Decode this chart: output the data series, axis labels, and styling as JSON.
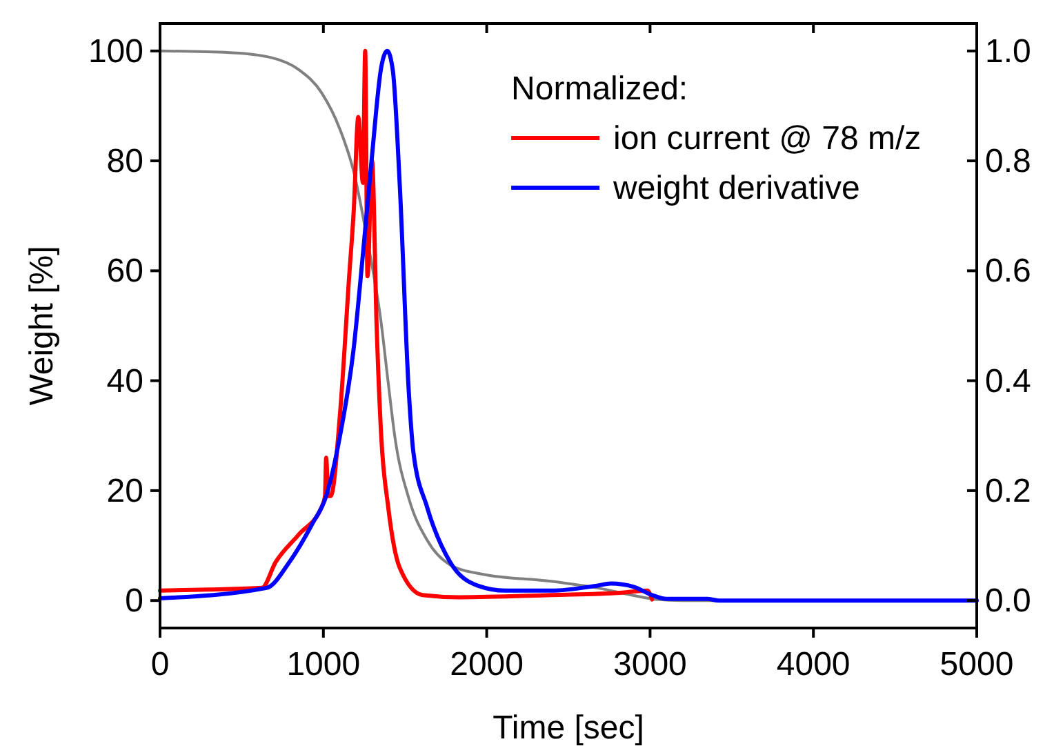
{
  "chart_data": {
    "type": "line",
    "xlabel": "Time [sec]",
    "ylabel": "Weight [%]",
    "legend_title": "Normalized:",
    "xlim": [
      0,
      5000
    ],
    "xticks": [
      0,
      1000,
      2000,
      3000,
      4000,
      5000
    ],
    "ylim": [
      -5,
      105
    ],
    "yticks": [
      0,
      20,
      40,
      60,
      80,
      100
    ],
    "y2lim": [
      -0.05,
      1.05
    ],
    "y2ticks": [
      {
        "value": 0,
        "label": "0.0"
      },
      {
        "value": 0.2,
        "label": "0.2"
      },
      {
        "value": 0.4,
        "label": "0.4"
      },
      {
        "value": 0.6,
        "label": "0.6"
      },
      {
        "value": 0.8,
        "label": "0.8"
      },
      {
        "value": 1,
        "label": "1.0"
      }
    ],
    "grid": false,
    "legend": "top right",
    "line_style": "solid",
    "marker": "none",
    "series": [
      {
        "color": "#808080",
        "x": [
          0,
          427,
          680,
          849,
          989,
          1102,
          1186,
          1270,
          1354,
          1397,
          1439,
          1523,
          1635,
          1776,
          1973,
          2394,
          2675,
          2956,
          3040,
          3200,
          5000
        ],
        "values": [
          100,
          99.7,
          98.8,
          96.6,
          92.4,
          85.7,
          78,
          65.5,
          50.5,
          39.6,
          29.5,
          18.6,
          11,
          6.5,
          4.8,
          3.5,
          2.3,
          0.6,
          0.2,
          0,
          0
        ]
      },
      {
        "name": "ion current @ 78 m/z",
        "color": "#ff0000",
        "axis": "y2",
        "x": [
          0,
          300,
          624,
          708,
          849,
          989,
          1010,
          1017,
          1030,
          1045,
          1102,
          1158,
          1186,
          1214,
          1242,
          1256,
          1270,
          1298,
          1326,
          1354,
          1397,
          1467,
          1607,
          1832,
          2394,
          2816,
          2984,
          3012
        ],
        "values": [
          0.018,
          0.02,
          0.023,
          0.07,
          0.12,
          0.17,
          0.19,
          0.26,
          0.19,
          0.19,
          0.34,
          0.59,
          0.71,
          0.88,
          0.76,
          1.0,
          0.59,
          0.8,
          0.5,
          0.3,
          0.17,
          0.06,
          0.01,
          0.006,
          0.01,
          0.014,
          0.018,
          0.002
        ]
      },
      {
        "name": "weight derivative",
        "color": "#0000ff",
        "axis": "y2",
        "x": [
          0,
          652,
          792,
          933,
          1017,
          1102,
          1186,
          1242,
          1298,
          1354,
          1391,
          1425,
          1467,
          1523,
          1551,
          1635,
          1776,
          1945,
          2113,
          2394,
          2675,
          2760,
          2900,
          3012,
          3100,
          3350,
          3420,
          5000
        ],
        "values": [
          0.004,
          0.023,
          0.07,
          0.14,
          0.19,
          0.3,
          0.46,
          0.63,
          0.81,
          0.97,
          1.0,
          0.965,
          0.76,
          0.38,
          0.27,
          0.17,
          0.07,
          0.027,
          0.018,
          0.018,
          0.027,
          0.031,
          0.025,
          0.01,
          0.003,
          0.003,
          0,
          0
        ]
      }
    ]
  }
}
